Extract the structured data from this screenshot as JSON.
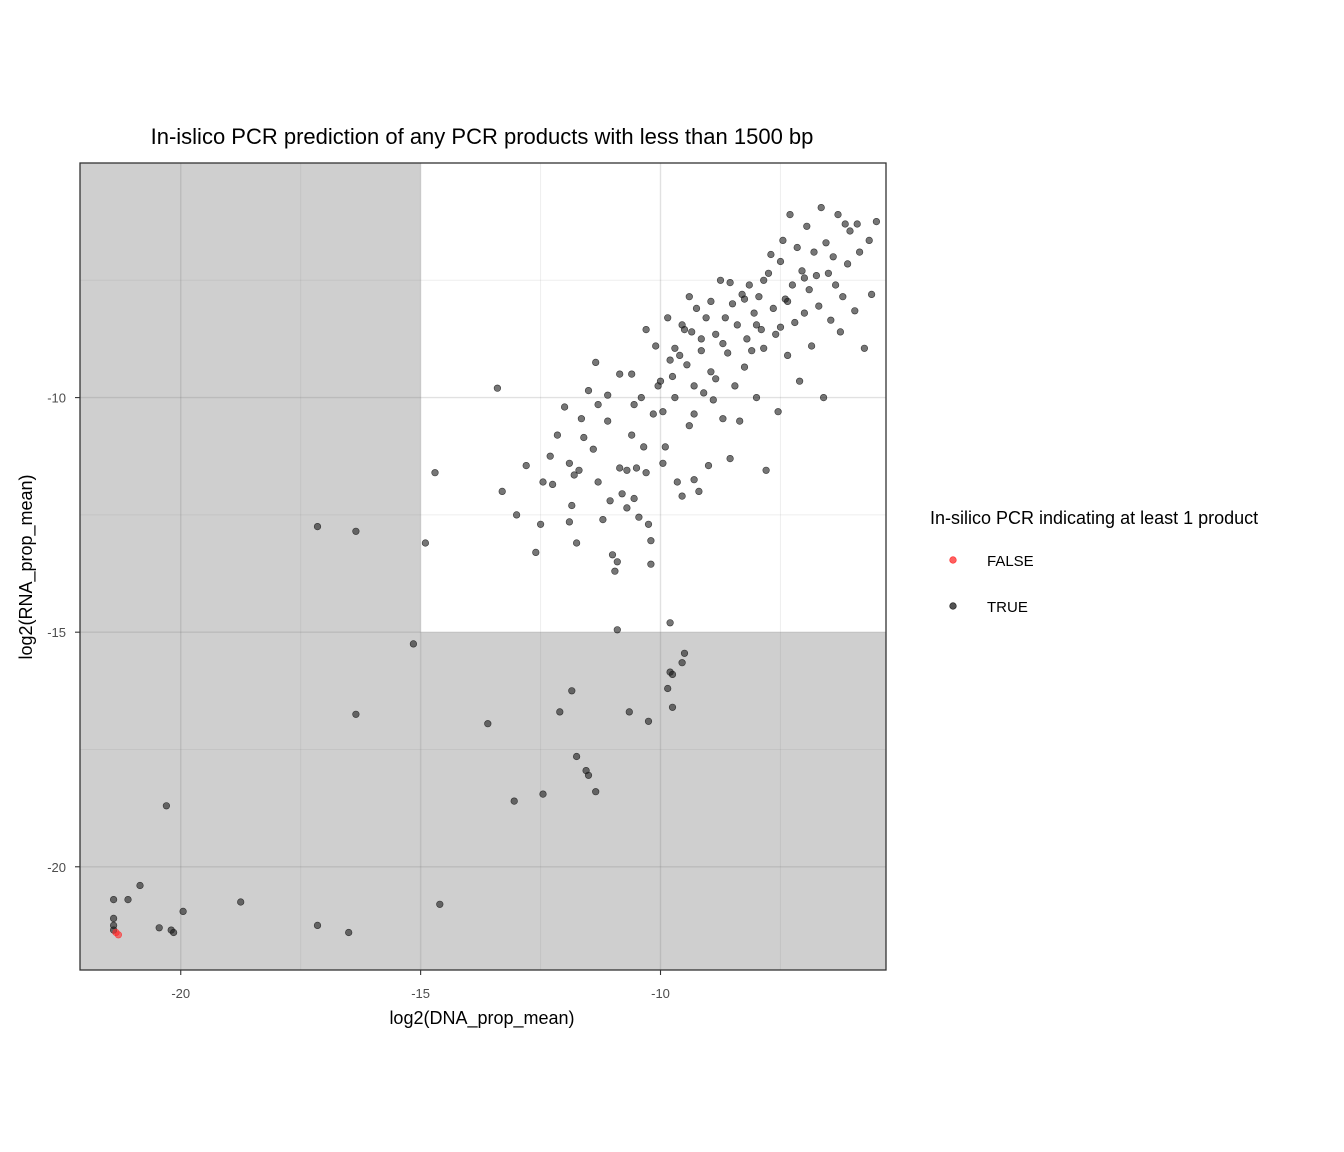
{
  "chart_data": {
    "type": "scatter",
    "title": "In-islico PCR prediction of any PCR products with less than 1500 bp",
    "xlabel": "log2(DNA_prop_mean)",
    "ylabel": "log2(RNA_prop_mean)",
    "xlim": [
      -22.1,
      -5.3
    ],
    "ylim": [
      -22.2,
      -5.0
    ],
    "x_ticks": [
      -20,
      -15,
      -10
    ],
    "y_ticks": [
      -10,
      -15,
      -20
    ],
    "x_tick_labels": [
      "-20",
      "-15",
      "-10"
    ],
    "y_tick_labels": [
      "-10",
      "-15",
      "-20"
    ],
    "grid": true,
    "theme": "bw",
    "shaded_region": {
      "x_threshold": -15,
      "y_threshold": -15,
      "color": "#cfcfcf"
    },
    "legend": {
      "title": "In-silico PCR indicating at least 1 product",
      "position": "right",
      "entries": [
        {
          "label": "FALSE",
          "color": "#ff2a2a"
        },
        {
          "label": "TRUE",
          "color": "#1a1a1a"
        }
      ]
    },
    "series": [
      {
        "name": "FALSE",
        "color": "#ff2a2a",
        "points": [
          [
            -21.35,
            -21.4
          ],
          [
            -21.3,
            -21.45
          ]
        ]
      },
      {
        "name": "TRUE",
        "color": "#1a1a1a",
        "points": [
          [
            -21.4,
            -20.7
          ],
          [
            -21.4,
            -21.1
          ],
          [
            -21.4,
            -21.25
          ],
          [
            -21.4,
            -21.35
          ],
          [
            -21.1,
            -20.7
          ],
          [
            -20.85,
            -20.4
          ],
          [
            -20.45,
            -21.3
          ],
          [
            -20.3,
            -18.7
          ],
          [
            -20.2,
            -21.35
          ],
          [
            -20.15,
            -21.4
          ],
          [
            -19.95,
            -20.95
          ],
          [
            -18.75,
            -20.75
          ],
          [
            -17.15,
            -21.25
          ],
          [
            -17.15,
            -12.75
          ],
          [
            -16.5,
            -21.4
          ],
          [
            -16.35,
            -12.85
          ],
          [
            -16.35,
            -16.75
          ],
          [
            -15.15,
            -15.25
          ],
          [
            -14.9,
            -13.1
          ],
          [
            -14.6,
            -20.8
          ],
          [
            -14.7,
            -11.6
          ],
          [
            -13.6,
            -16.95
          ],
          [
            -13.05,
            -18.6
          ],
          [
            -12.45,
            -18.45
          ],
          [
            -11.85,
            -16.25
          ],
          [
            -12.1,
            -16.7
          ],
          [
            -11.75,
            -17.65
          ],
          [
            -11.55,
            -17.95
          ],
          [
            -11.5,
            -18.05
          ],
          [
            -11.35,
            -18.4
          ],
          [
            -10.65,
            -16.7
          ],
          [
            -10.25,
            -16.9
          ],
          [
            -9.8,
            -14.8
          ],
          [
            -10.9,
            -14.95
          ],
          [
            -9.8,
            -15.85
          ],
          [
            -9.85,
            -16.2
          ],
          [
            -9.75,
            -16.6
          ],
          [
            -9.55,
            -15.65
          ],
          [
            -9.5,
            -15.45
          ],
          [
            -9.75,
            -15.9
          ],
          [
            -13.4,
            -9.8
          ],
          [
            -13.3,
            -12.0
          ],
          [
            -13.0,
            -12.5
          ],
          [
            -12.8,
            -11.45
          ],
          [
            -12.6,
            -13.3
          ],
          [
            -12.5,
            -12.7
          ],
          [
            -12.45,
            -11.8
          ],
          [
            -12.25,
            -11.85
          ],
          [
            -12.3,
            -11.25
          ],
          [
            -12.15,
            -10.8
          ],
          [
            -12.0,
            -10.2
          ],
          [
            -11.9,
            -11.4
          ],
          [
            -11.85,
            -12.3
          ],
          [
            -11.9,
            -12.65
          ],
          [
            -11.75,
            -13.1
          ],
          [
            -11.7,
            -11.55
          ],
          [
            -11.6,
            -10.85
          ],
          [
            -11.65,
            -10.45
          ],
          [
            -11.5,
            -9.85
          ],
          [
            -11.4,
            -11.1
          ],
          [
            -11.35,
            -9.25
          ],
          [
            -11.3,
            -11.8
          ],
          [
            -11.2,
            -12.6
          ],
          [
            -11.1,
            -10.5
          ],
          [
            -11.1,
            -9.95
          ],
          [
            -11.05,
            -12.2
          ],
          [
            -11.0,
            -13.35
          ],
          [
            -10.95,
            -13.7
          ],
          [
            -10.9,
            -13.5
          ],
          [
            -10.85,
            -9.5
          ],
          [
            -10.85,
            -11.5
          ],
          [
            -10.8,
            -12.05
          ],
          [
            -10.7,
            -11.55
          ],
          [
            -10.6,
            -9.5
          ],
          [
            -10.6,
            -10.8
          ],
          [
            -10.55,
            -12.15
          ],
          [
            -10.5,
            -11.5
          ],
          [
            -10.45,
            -12.55
          ],
          [
            -10.4,
            -10.0
          ],
          [
            -10.35,
            -11.05
          ],
          [
            -10.3,
            -11.6
          ],
          [
            -10.25,
            -12.7
          ],
          [
            -10.2,
            -13.05
          ],
          [
            -10.2,
            -13.55
          ],
          [
            -10.15,
            -10.35
          ],
          [
            -10.3,
            -8.55
          ],
          [
            -10.1,
            -8.9
          ],
          [
            -10.0,
            -9.65
          ],
          [
            -9.95,
            -11.4
          ],
          [
            -9.95,
            -10.3
          ],
          [
            -9.9,
            -11.05
          ],
          [
            -9.85,
            -8.3
          ],
          [
            -9.75,
            -9.55
          ],
          [
            -9.7,
            -10.0
          ],
          [
            -9.7,
            -8.95
          ],
          [
            -9.65,
            -11.8
          ],
          [
            -9.6,
            -9.1
          ],
          [
            -9.55,
            -12.1
          ],
          [
            -9.5,
            -8.55
          ],
          [
            -9.45,
            -9.3
          ],
          [
            -9.4,
            -10.6
          ],
          [
            -9.4,
            -7.85
          ],
          [
            -9.35,
            -8.6
          ],
          [
            -9.3,
            -9.75
          ],
          [
            -9.3,
            -11.75
          ],
          [
            -9.25,
            -8.1
          ],
          [
            -9.2,
            -12.0
          ],
          [
            -9.15,
            -9.0
          ],
          [
            -9.1,
            -9.9
          ],
          [
            -9.05,
            -8.3
          ],
          [
            -9.0,
            -11.45
          ],
          [
            -8.95,
            -7.95
          ],
          [
            -8.9,
            -10.05
          ],
          [
            -8.85,
            -9.6
          ],
          [
            -8.85,
            -8.65
          ],
          [
            -8.75,
            -7.5
          ],
          [
            -8.7,
            -10.45
          ],
          [
            -8.65,
            -8.3
          ],
          [
            -8.6,
            -9.05
          ],
          [
            -8.55,
            -11.3
          ],
          [
            -8.5,
            -8.0
          ],
          [
            -8.45,
            -9.75
          ],
          [
            -8.4,
            -8.45
          ],
          [
            -8.35,
            -10.5
          ],
          [
            -8.3,
            -7.8
          ],
          [
            -8.25,
            -9.35
          ],
          [
            -8.2,
            -8.75
          ],
          [
            -8.15,
            -7.6
          ],
          [
            -8.1,
            -9.0
          ],
          [
            -8.05,
            -8.2
          ],
          [
            -8.0,
            -10.0
          ],
          [
            -7.95,
            -7.85
          ],
          [
            -7.9,
            -8.55
          ],
          [
            -7.85,
            -8.95
          ],
          [
            -7.8,
            -11.55
          ],
          [
            -7.75,
            -7.35
          ],
          [
            -7.7,
            -6.95
          ],
          [
            -7.65,
            -8.1
          ],
          [
            -7.6,
            -8.65
          ],
          [
            -7.55,
            -10.3
          ],
          [
            -7.5,
            -7.1
          ],
          [
            -7.45,
            -6.65
          ],
          [
            -7.4,
            -7.9
          ],
          [
            -7.35,
            -9.1
          ],
          [
            -7.3,
            -6.1
          ],
          [
            -7.25,
            -7.6
          ],
          [
            -7.2,
            -8.4
          ],
          [
            -7.15,
            -6.8
          ],
          [
            -7.1,
            -9.65
          ],
          [
            -7.05,
            -7.3
          ],
          [
            -7.0,
            -8.2
          ],
          [
            -6.95,
            -6.35
          ],
          [
            -6.9,
            -7.7
          ],
          [
            -6.85,
            -8.9
          ],
          [
            -6.8,
            -6.9
          ],
          [
            -6.75,
            -7.4
          ],
          [
            -6.7,
            -8.05
          ],
          [
            -6.65,
            -5.95
          ],
          [
            -6.6,
            -10.0
          ],
          [
            -6.55,
            -6.7
          ],
          [
            -6.5,
            -7.35
          ],
          [
            -6.45,
            -8.35
          ],
          [
            -6.4,
            -7.0
          ],
          [
            -6.3,
            -6.1
          ],
          [
            -6.25,
            -8.6
          ],
          [
            -6.2,
            -7.85
          ],
          [
            -6.15,
            -6.3
          ],
          [
            -6.1,
            -7.15
          ],
          [
            -6.05,
            -6.45
          ],
          [
            -5.95,
            -8.15
          ],
          [
            -5.9,
            -6.3
          ],
          [
            -5.85,
            -6.9
          ],
          [
            -5.75,
            -8.95
          ],
          [
            -5.65,
            -6.65
          ],
          [
            -5.6,
            -7.8
          ],
          [
            -5.5,
            -6.25
          ],
          [
            -8.7,
            -8.85
          ],
          [
            -8.25,
            -7.9
          ],
          [
            -7.85,
            -7.5
          ],
          [
            -7.35,
            -7.95
          ],
          [
            -8.95,
            -9.45
          ],
          [
            -9.55,
            -8.45
          ],
          [
            -10.05,
            -9.75
          ],
          [
            -8.55,
            -7.55
          ],
          [
            -7.0,
            -7.45
          ],
          [
            -6.35,
            -7.6
          ],
          [
            -9.3,
            -10.35
          ],
          [
            -8.0,
            -8.45
          ],
          [
            -7.5,
            -8.5
          ],
          [
            -9.8,
            -9.2
          ],
          [
            -10.55,
            -10.15
          ],
          [
            -11.3,
            -10.15
          ],
          [
            -11.8,
            -11.65
          ],
          [
            -10.7,
            -12.35
          ],
          [
            -9.15,
            -8.75
          ]
        ]
      }
    ]
  }
}
